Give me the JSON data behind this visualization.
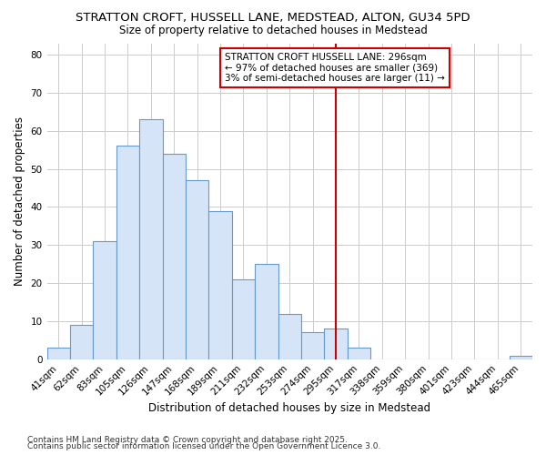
{
  "title1": "STRATTON CROFT, HUSSELL LANE, MEDSTEAD, ALTON, GU34 5PD",
  "title2": "Size of property relative to detached houses in Medstead",
  "xlabel": "Distribution of detached houses by size in Medstead",
  "ylabel": "Number of detached properties",
  "categories": [
    "41sqm",
    "62sqm",
    "83sqm",
    "105sqm",
    "126sqm",
    "147sqm",
    "168sqm",
    "189sqm",
    "211sqm",
    "232sqm",
    "253sqm",
    "274sqm",
    "295sqm",
    "317sqm",
    "338sqm",
    "359sqm",
    "380sqm",
    "401sqm",
    "423sqm",
    "444sqm",
    "465sqm"
  ],
  "values": [
    3,
    9,
    31,
    56,
    63,
    54,
    47,
    39,
    21,
    25,
    12,
    7,
    8,
    3,
    0,
    0,
    0,
    0,
    0,
    0,
    1
  ],
  "bar_color": "#d6e4f7",
  "bar_edge_color": "#6699cc",
  "vline_index": 12,
  "vline_color": "#cc0000",
  "annotation_line1": "STRATTON CROFT HUSSELL LANE: 296sqm",
  "annotation_line2": "← 97% of detached houses are smaller (369)",
  "annotation_line3": "3% of semi-detached houses are larger (11) →",
  "annotation_box_edge": "#cc0000",
  "footnote1": "Contains HM Land Registry data © Crown copyright and database right 2025.",
  "footnote2": "Contains public sector information licensed under the Open Government Licence 3.0.",
  "plot_bg_color": "#ffffff",
  "fig_bg_color": "#ffffff",
  "ylim": [
    0,
    83
  ],
  "yticks": [
    0,
    10,
    20,
    30,
    40,
    50,
    60,
    70,
    80
  ],
  "grid_color": "#cccccc",
  "title_fontsize": 9.5,
  "subtitle_fontsize": 8.5,
  "axis_label_fontsize": 8.5,
  "tick_fontsize": 7.5,
  "annotation_fontsize": 7.5,
  "footnote_fontsize": 6.5
}
